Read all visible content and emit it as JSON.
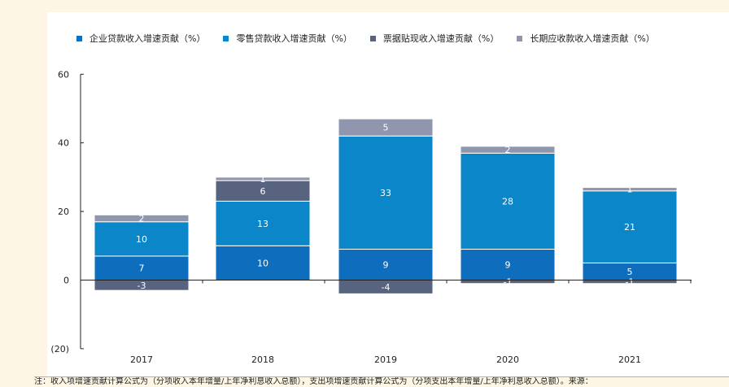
{
  "chart_data": {
    "type": "bar",
    "stacked": true,
    "categories": [
      "2017",
      "2018",
      "2019",
      "2020",
      "2021"
    ],
    "series": [
      {
        "name": "企业贷款收入增速贡献（%）",
        "color": "#0F6DBE",
        "values": [
          7,
          10,
          9,
          9,
          5
        ],
        "labels": [
          "7",
          "10",
          "9",
          "9",
          "5"
        ]
      },
      {
        "name": "零售贷款收入增速贡献（%）",
        "color": "#0A86C9",
        "values": [
          10,
          13,
          33,
          28,
          21
        ],
        "labels": [
          "10",
          "13",
          "33",
          "28",
          "21"
        ]
      },
      {
        "name": "票据贴现收入增速贡献（%）",
        "color": "#586380",
        "values": [
          -3,
          6,
          -4,
          -1,
          -1
        ],
        "labels": [
          "-3",
          "6",
          "-4",
          "-1",
          "-1"
        ]
      },
      {
        "name": "长期应收款收入增速贡献（%）",
        "color": "#8F96AD",
        "values": [
          2,
          1,
          5,
          2,
          1
        ],
        "labels": [
          "2",
          "1",
          "5",
          "2",
          "1"
        ]
      }
    ],
    "yticks": [
      "60",
      "40",
      "20",
      "0",
      "(20)"
    ],
    "ylim": [
      -20,
      60
    ],
    "grid": false,
    "legend_position": "top"
  },
  "footnote": "注：收入项增速贡献计算公式为（分项收入本年增量/上年净利息收入总额），支出项增速贡献计算公式为（分项支出本年增量/上年净利息收入总额）。来源："
}
